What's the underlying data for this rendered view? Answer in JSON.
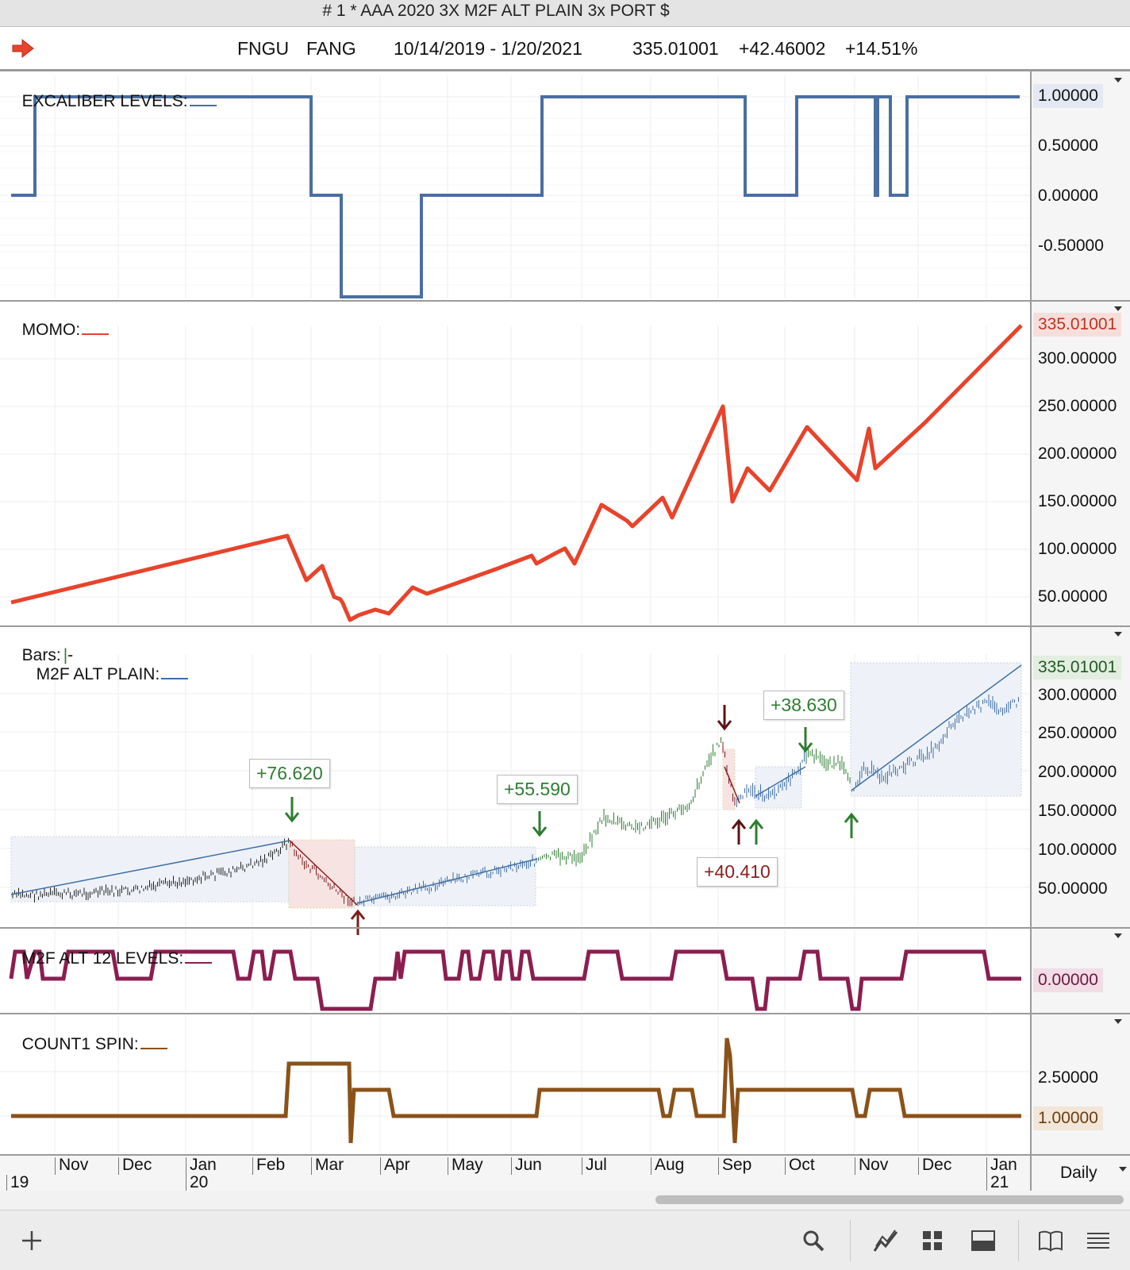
{
  "window": {
    "title": "# 1 * AAA 2020 3X M2F ALT PLAIN 3x PORT $"
  },
  "info_bar": {
    "arrow_icon": "red-right-arrow-icon",
    "symbol": "FNGU",
    "group": "FANG",
    "date_range": "10/14/2019 - 1/20/2021",
    "last_price": "335.01001",
    "change": "+42.46002",
    "change_pct": "+14.51%"
  },
  "panes": {
    "excaliber": {
      "label": "EXCALIBER LEVELS:",
      "color": "#4a6fa0",
      "axis_labels": [
        "1.00000",
        "0.50000",
        "0.00000",
        "-0.50000"
      ],
      "current_value": "1.00000"
    },
    "momo": {
      "label": "MOMO:",
      "color": "#e8432b",
      "axis_labels": [
        "300.00000",
        "250.00000",
        "200.00000",
        "150.00000",
        "100.00000",
        "50.00000"
      ],
      "current_value": "335.01001"
    },
    "bars": {
      "label_bars": "Bars:",
      "label_bars_suffix": "-",
      "label_m2f": "M2F ALT PLAIN:",
      "axis_labels": [
        "300.00000",
        "250.00000",
        "200.00000",
        "150.00000",
        "100.00000",
        "50.00000"
      ],
      "current_value": "335.01001",
      "callouts": {
        "c1": "+76.620",
        "c2": "+55.590",
        "c3": "+40.410",
        "c4": "+38.630"
      },
      "colors": {
        "long": "#2e7d32",
        "short": "#7a1e1e",
        "trend": "#3f6fa6"
      }
    },
    "m2f12": {
      "label": "M2F ALT 12 LEVELS:",
      "color": "#8b1e4f",
      "current_value": "0.00000"
    },
    "count1": {
      "label": "COUNT1 SPIN:",
      "color": "#8a5219",
      "axis_labels": [
        "2.50000"
      ],
      "current_value": "1.00000"
    }
  },
  "x_axis": {
    "months": [
      "Nov",
      "Dec",
      "Jan",
      "Feb",
      "Mar",
      "Apr",
      "May",
      "Jun",
      "Jul",
      "Aug",
      "Sep",
      "Oct",
      "Nov",
      "Dec",
      "Jan"
    ],
    "years": [
      "19",
      "20",
      "21"
    ]
  },
  "interval": "Daily",
  "toolbar": {
    "icons": [
      "add-icon",
      "search-icon",
      "chart-style-icon",
      "layout-grid-icon",
      "panel-icon",
      "book-icon",
      "list-icon"
    ]
  }
}
